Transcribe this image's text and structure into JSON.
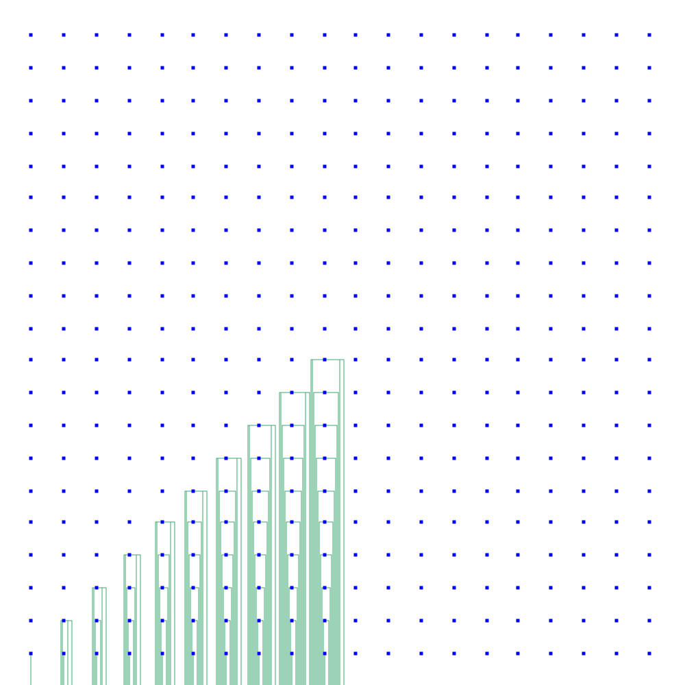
{
  "colors": {
    "background": "#ffffff",
    "node": "#0000ee",
    "wire": "#3aa56e"
  },
  "grid": {
    "columns": 20,
    "rows": 20
  },
  "wired_columns": {
    "description_free": true,
    "count": 10
  }
}
